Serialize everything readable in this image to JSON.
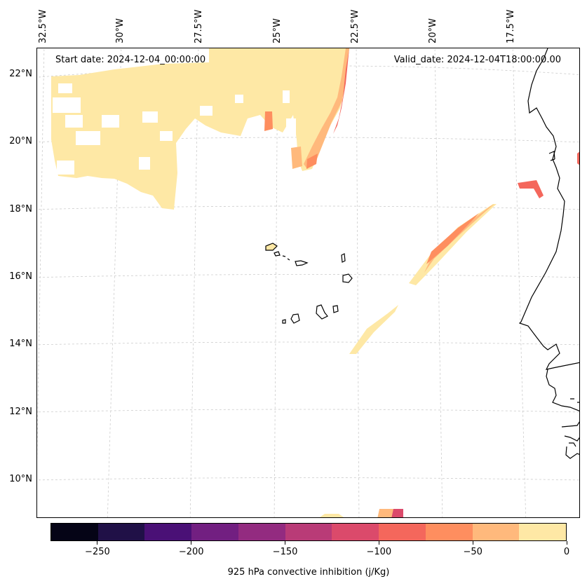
{
  "header": {
    "start_date": "Start date: 2024-12-04_00:00:00",
    "valid_date": "Valid_date: 2024-12-04T18:00:00.00"
  },
  "lon_labels": [
    "32.5°W",
    "30°W",
    "27.5°W",
    "25°W",
    "22.5°W",
    "20°W",
    "17.5°W"
  ],
  "lat_labels": [
    "22°N",
    "20°N",
    "18°N",
    "16°N",
    "14°N",
    "12°N",
    "10°N"
  ],
  "colorbar": {
    "title": "925 hPa convective inhibition (j/Kg)",
    "tick_labels": [
      "−250",
      "−200",
      "−150",
      "−100",
      "−50",
      "0"
    ],
    "colors": [
      "#050416",
      "#201047",
      "#4a1076",
      "#721f81",
      "#932b80",
      "#b93b77",
      "#db4a6b",
      "#f4675c",
      "#fe8e5f",
      "#ffb97c",
      "#fee8a5"
    ]
  }
}
